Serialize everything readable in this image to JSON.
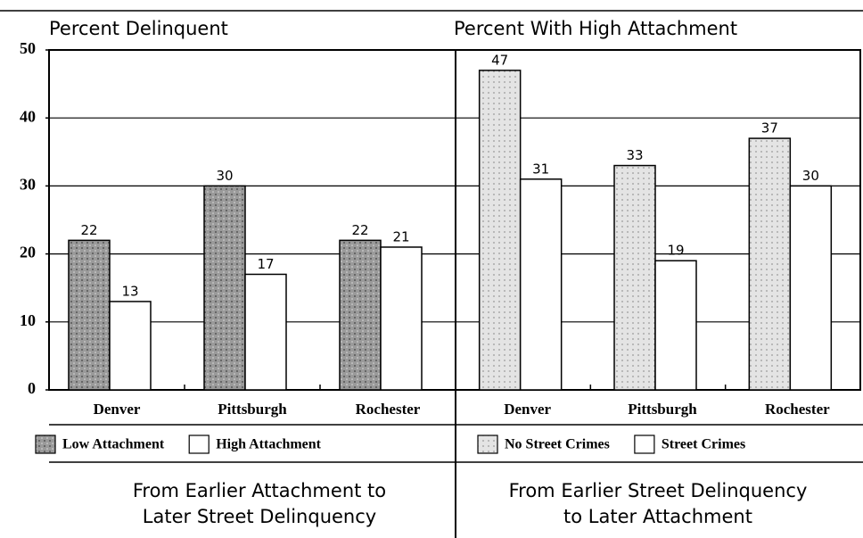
{
  "chart_data": [
    {
      "type": "bar",
      "title": "Percent Delinquent",
      "categories": [
        "Denver",
        "Pittsburgh",
        "Rochester"
      ],
      "series": [
        {
          "name": "Low Attachment",
          "color": "#9a9a9a",
          "values": [
            22,
            30,
            22
          ]
        },
        {
          "name": "High Attachment",
          "color": "#ffffff",
          "values": [
            13,
            17,
            21
          ]
        }
      ],
      "ylim": [
        0,
        50
      ],
      "yticks": [
        0,
        10,
        20,
        30,
        40,
        50
      ],
      "grid": true,
      "caption": [
        "From Earlier Attachment to",
        "Later Street Delinquency"
      ]
    },
    {
      "type": "bar",
      "title": "Percent With High Attachment",
      "categories": [
        "Denver",
        "Pittsburgh",
        "Rochester"
      ],
      "series": [
        {
          "name": "No Street Crimes",
          "color": "#e4e4e4",
          "values": [
            47,
            33,
            37
          ]
        },
        {
          "name": "Street Crimes",
          "color": "#ffffff",
          "values": [
            31,
            19,
            30
          ]
        }
      ],
      "ylim": [
        0,
        50
      ],
      "grid": true,
      "caption": [
        "From Earlier Street Delinquency",
        "to Later Attachment"
      ]
    }
  ]
}
